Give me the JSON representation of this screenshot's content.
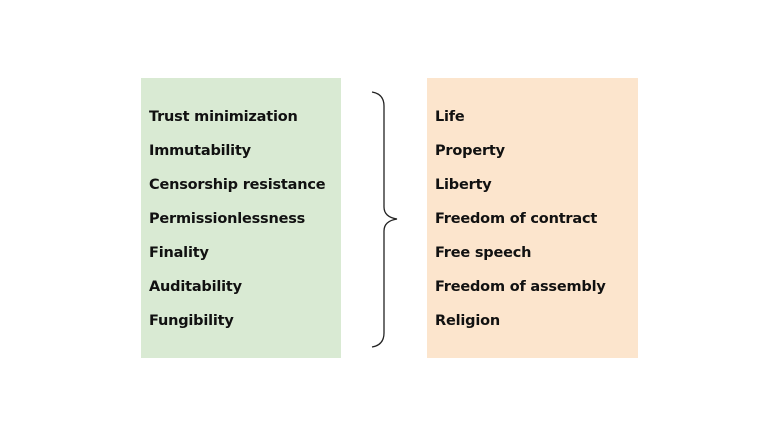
{
  "left_list": {
    "color": "#d9ead3",
    "items": [
      "Trust minimization",
      "Immutability",
      "Censorship resistance",
      "Permissionlessness",
      "Finality",
      "Auditability",
      "Fungibility"
    ]
  },
  "right_list": {
    "color": "#fce5cd",
    "items": [
      "Life",
      "Property",
      "Liberty",
      "Freedom of contract",
      "Free speech",
      "Freedom of assembly",
      "Religion"
    ]
  }
}
